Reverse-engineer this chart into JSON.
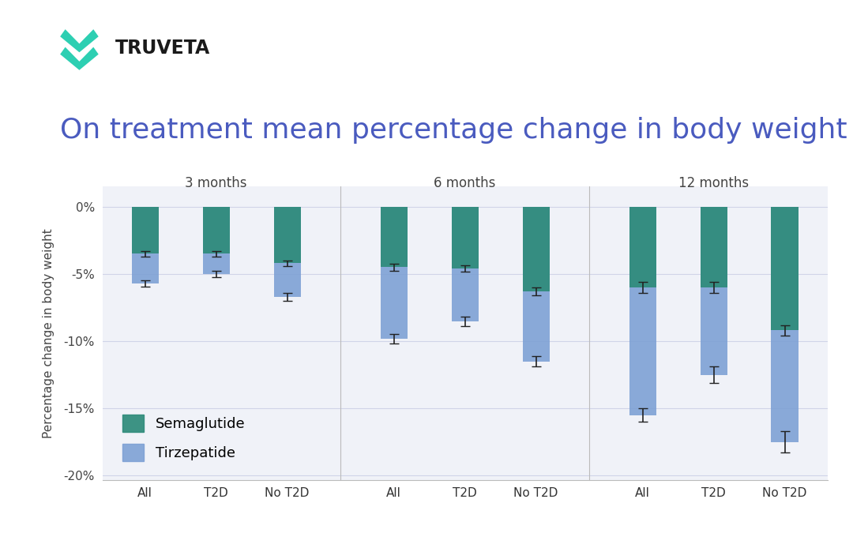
{
  "title": "On treatment mean percentage change in body weight",
  "ylabel": "Percentage change in body weight",
  "bg_color": "#ffffff",
  "plot_bg_color": "#f0f2f8",
  "sema_color": "#2e8b7a",
  "tirz_color": "#7b9fd4",
  "groups": [
    "3 months",
    "6 months",
    "12 months"
  ],
  "subgroups": [
    "All",
    "T2D",
    "No T2D"
  ],
  "sema_values": [
    -3.5,
    -3.5,
    -4.2,
    -4.5,
    -4.6,
    -6.3,
    -6.0,
    -6.0,
    -9.2
  ],
  "tirz_values": [
    -5.7,
    -5.0,
    -6.7,
    -9.8,
    -8.5,
    -11.5,
    -15.5,
    -12.5,
    -17.5
  ],
  "sema_errors": [
    0.2,
    0.2,
    0.2,
    0.25,
    0.25,
    0.3,
    0.4,
    0.4,
    0.4
  ],
  "tirz_errors": [
    0.25,
    0.25,
    0.3,
    0.35,
    0.35,
    0.4,
    0.5,
    0.6,
    0.8
  ],
  "ylim": [
    -20,
    0
  ],
  "yticks": [
    0,
    -5,
    -10,
    -15,
    -20
  ],
  "title_color": "#4a5bbf",
  "title_fontsize": 26,
  "axis_fontsize": 11,
  "tick_fontsize": 11,
  "legend_fontsize": 13,
  "group_label_fontsize": 12,
  "chevron_color": "#2dcfb2",
  "logo_text_color": "#1a1a1a"
}
